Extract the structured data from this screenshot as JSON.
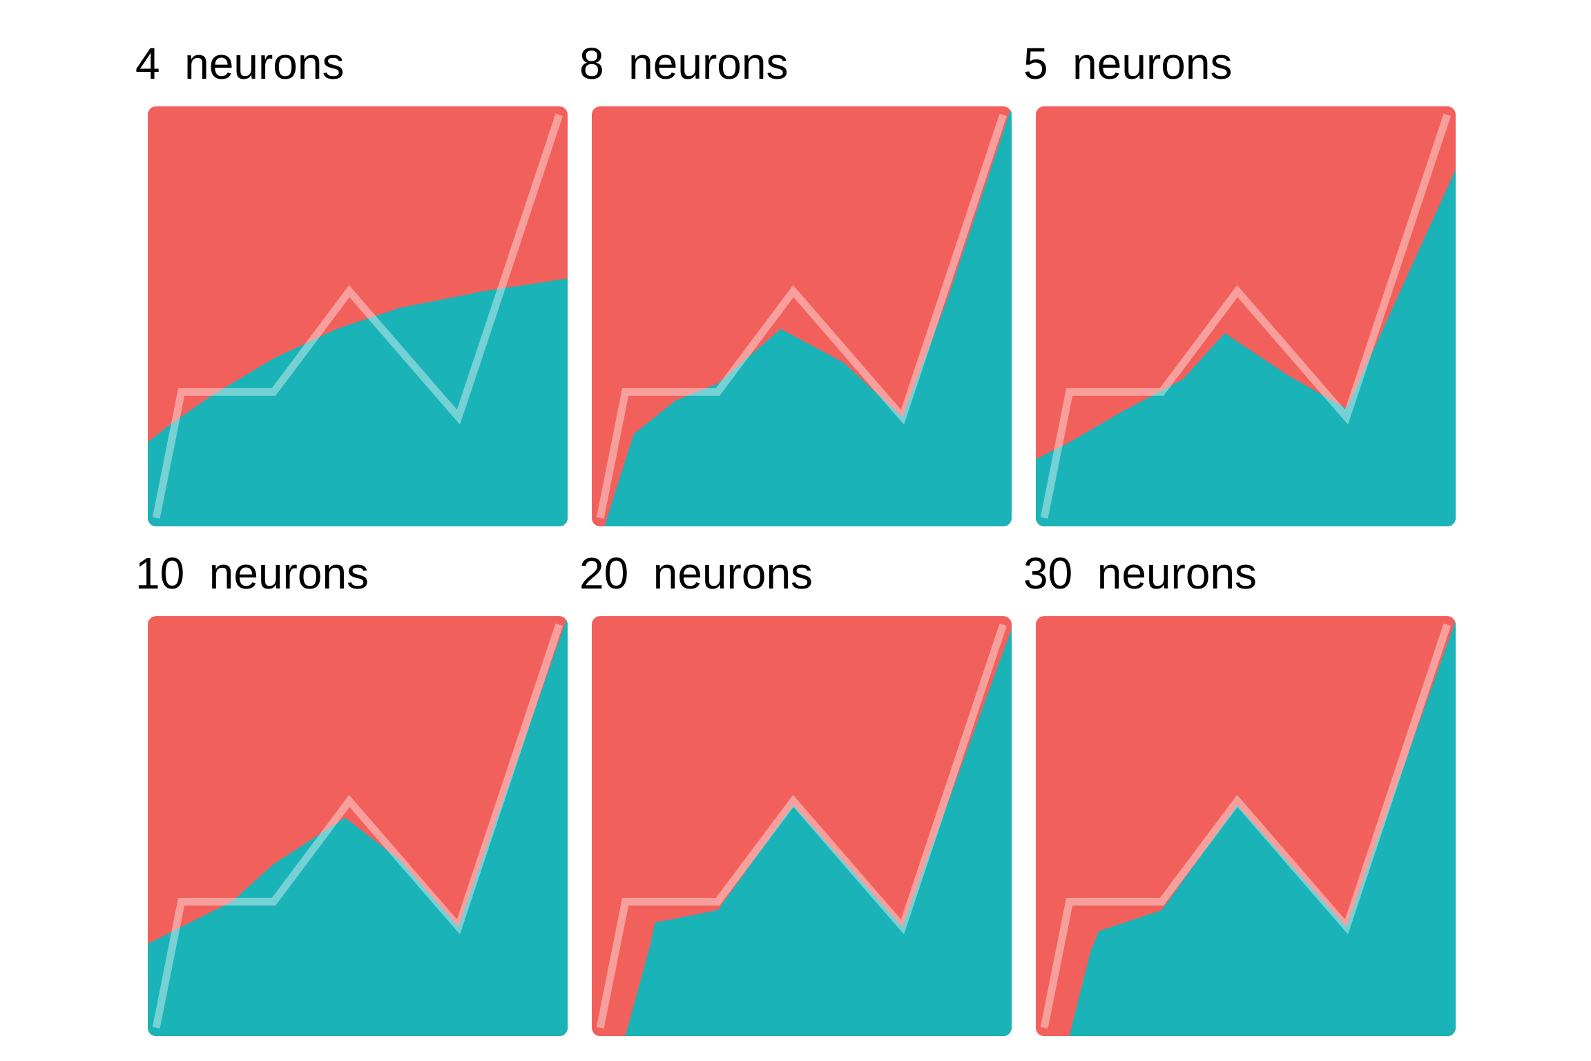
{
  "colors": {
    "upper_region": "#F2605C",
    "lower_region": "#1AB3B7",
    "line": "#FFFFFF"
  },
  "chart_data": [
    {
      "type": "area",
      "title_number": "4",
      "title_unit": "neurons",
      "line": {
        "x": [
          0.02,
          0.08,
          0.3,
          0.48,
          0.74,
          0.98
        ],
        "y": [
          0.02,
          0.32,
          0.32,
          0.56,
          0.26,
          0.98
        ]
      },
      "boundary": {
        "x": [
          0,
          0.05,
          0.15,
          0.3,
          0.45,
          0.6,
          0.8,
          1.0
        ],
        "y": [
          0.2,
          0.24,
          0.31,
          0.4,
          0.47,
          0.52,
          0.56,
          0.59
        ]
      }
    },
    {
      "type": "area",
      "title_number": "8",
      "title_unit": "neurons",
      "line": {
        "x": [
          0.02,
          0.08,
          0.3,
          0.48,
          0.74,
          0.98
        ],
        "y": [
          0.02,
          0.32,
          0.32,
          0.56,
          0.26,
          0.98
        ]
      },
      "boundary": {
        "x": [
          0.03,
          0.1,
          0.2,
          0.3,
          0.45,
          0.6,
          0.74,
          0.85,
          1.0
        ],
        "y": [
          0.0,
          0.22,
          0.3,
          0.34,
          0.47,
          0.39,
          0.26,
          0.55,
          1.0
        ]
      }
    },
    {
      "type": "area",
      "title_number": "5",
      "title_unit": "neurons",
      "line": {
        "x": [
          0.02,
          0.08,
          0.3,
          0.48,
          0.74,
          0.98
        ],
        "y": [
          0.02,
          0.32,
          0.32,
          0.56,
          0.26,
          0.98
        ]
      },
      "boundary": {
        "x": [
          0,
          0.08,
          0.2,
          0.35,
          0.45,
          0.6,
          0.74,
          0.85,
          1.0
        ],
        "y": [
          0.16,
          0.2,
          0.27,
          0.35,
          0.46,
          0.36,
          0.28,
          0.52,
          0.85
        ]
      }
    },
    {
      "type": "area",
      "title_number": "10",
      "title_unit": "neurons",
      "line": {
        "x": [
          0.02,
          0.08,
          0.3,
          0.48,
          0.74,
          0.98
        ],
        "y": [
          0.02,
          0.32,
          0.32,
          0.56,
          0.26,
          0.98
        ]
      },
      "boundary": {
        "x": [
          0,
          0.1,
          0.2,
          0.3,
          0.47,
          0.6,
          0.74,
          0.86,
          1.0
        ],
        "y": [
          0.22,
          0.27,
          0.32,
          0.41,
          0.52,
          0.42,
          0.26,
          0.6,
          1.0
        ]
      }
    },
    {
      "type": "area",
      "title_number": "20",
      "title_unit": "neurons",
      "line": {
        "x": [
          0.02,
          0.08,
          0.3,
          0.48,
          0.74,
          0.98
        ],
        "y": [
          0.02,
          0.32,
          0.32,
          0.56,
          0.26,
          0.98
        ]
      },
      "boundary": {
        "x": [
          0.08,
          0.14,
          0.15,
          0.3,
          0.48,
          0.74,
          1.0
        ],
        "y": [
          0.0,
          0.22,
          0.27,
          0.3,
          0.55,
          0.26,
          0.97
        ]
      }
    },
    {
      "type": "area",
      "title_number": "30",
      "title_unit": "neurons",
      "line": {
        "x": [
          0.02,
          0.08,
          0.3,
          0.48,
          0.74,
          0.98
        ],
        "y": [
          0.02,
          0.32,
          0.32,
          0.56,
          0.26,
          0.98
        ]
      },
      "boundary": {
        "x": [
          0.08,
          0.13,
          0.15,
          0.3,
          0.48,
          0.74,
          1.0
        ],
        "y": [
          0.0,
          0.2,
          0.25,
          0.3,
          0.55,
          0.26,
          0.99
        ]
      }
    }
  ]
}
